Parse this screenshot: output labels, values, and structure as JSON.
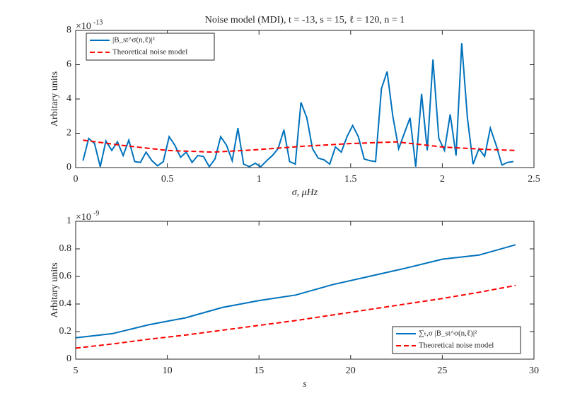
{
  "chart_data": [
    {
      "type": "line",
      "title": "Noise model (MDI), t = -13, s = 15, ℓ = 120, n = 1",
      "x_label": "σ, μHz",
      "y_label": "Arbitary units",
      "y_multiplier": "×10",
      "y_exponent": "-13",
      "xlim": [
        0,
        2.5
      ],
      "xticks": [
        0,
        0.5,
        1,
        1.5,
        2,
        2.5
      ],
      "ylim": [
        0,
        8
      ],
      "yticks": [
        0,
        2,
        4,
        6,
        8
      ],
      "legend": "upper left",
      "series": [
        {
          "name": "|B_st^σ(n,ℓ)|²",
          "color": "#0072bd",
          "dash": "solid",
          "x": [
            0.04,
            0.071,
            0.103,
            0.134,
            0.165,
            0.197,
            0.228,
            0.259,
            0.29,
            0.322,
            0.353,
            0.384,
            0.416,
            0.447,
            0.478,
            0.51,
            0.541,
            0.572,
            0.603,
            0.635,
            0.666,
            0.697,
            0.729,
            0.76,
            0.791,
            0.823,
            0.854,
            0.885,
            0.916,
            0.948,
            0.979,
            1.01,
            1.042,
            1.073,
            1.104,
            1.136,
            1.167,
            1.198,
            1.229,
            1.261,
            1.292,
            1.323,
            1.355,
            1.386,
            1.417,
            1.449,
            1.48,
            1.511,
            1.542,
            1.574,
            1.605,
            1.636,
            1.668,
            1.699,
            1.73,
            1.762,
            1.793,
            1.824,
            1.855,
            1.887,
            1.918,
            1.949,
            1.981,
            2.012,
            2.043,
            2.075,
            2.106,
            2.137,
            2.168,
            2.2,
            2.231,
            2.262,
            2.294,
            2.325,
            2.356,
            2.388
          ],
          "values": [
            0.4,
            1.7,
            1.4,
            0.05,
            1.55,
            1.0,
            1.5,
            0.7,
            1.6,
            0.35,
            0.3,
            0.9,
            0.4,
            0.1,
            0.35,
            1.8,
            1.3,
            0.6,
            0.9,
            0.3,
            0.7,
            0.65,
            0.05,
            0.5,
            1.8,
            1.3,
            0.4,
            2.3,
            0.2,
            0.05,
            0.25,
            0.05,
            0.4,
            0.7,
            1.1,
            2.2,
            0.35,
            0.2,
            3.8,
            2.9,
            1.1,
            0.55,
            0.45,
            0.2,
            1.2,
            0.9,
            1.8,
            2.45,
            1.8,
            0.5,
            0.4,
            0.35,
            4.6,
            5.6,
            3.0,
            1.1,
            2.0,
            2.9,
            0.05,
            4.3,
            1.0,
            6.3,
            1.7,
            1.0,
            3.1,
            0.7,
            7.25,
            2.9,
            0.2,
            1.1,
            0.65,
            2.3,
            1.3,
            0.15,
            0.3,
            0.35
          ]
        },
        {
          "name": "Theoretical noise model",
          "color": "#ff0000",
          "dash": "dashed",
          "x": [
            0.04,
            0.25,
            0.5,
            0.75,
            1.0,
            1.25,
            1.5,
            1.75,
            2.0,
            2.25,
            2.4
          ],
          "values": [
            1.6,
            1.3,
            1.0,
            0.9,
            1.05,
            1.25,
            1.4,
            1.5,
            1.2,
            1.05,
            1.0
          ]
        }
      ]
    },
    {
      "type": "line",
      "x_label": "s",
      "y_label": "Arbitary units",
      "y_multiplier": "×10",
      "y_exponent": "-9",
      "xlim": [
        5,
        30
      ],
      "xticks": [
        5,
        10,
        15,
        20,
        25,
        30
      ],
      "ylim": [
        0,
        1
      ],
      "yticks": [
        0,
        0.2,
        0.4,
        0.6,
        0.8,
        1
      ],
      "legend": "lower right",
      "series": [
        {
          "name": "∑ₜ,σ |B_st^σ(n,ℓ)|²",
          "color": "#0072bd",
          "dash": "solid",
          "x": [
            5,
            7,
            9,
            11,
            13,
            15,
            17,
            19,
            21,
            23,
            25,
            27,
            29
          ],
          "values": [
            0.155,
            0.185,
            0.25,
            0.3,
            0.375,
            0.425,
            0.465,
            0.54,
            0.6,
            0.66,
            0.725,
            0.755,
            0.83
          ]
        },
        {
          "name": "Theoretical noise model",
          "color": "#ff0000",
          "dash": "dashed",
          "x": [
            5,
            7,
            9,
            11,
            13,
            15,
            17,
            19,
            21,
            23,
            25,
            27,
            29
          ],
          "values": [
            0.08,
            0.11,
            0.145,
            0.175,
            0.21,
            0.245,
            0.28,
            0.32,
            0.36,
            0.4,
            0.44,
            0.485,
            0.535
          ]
        }
      ]
    }
  ]
}
